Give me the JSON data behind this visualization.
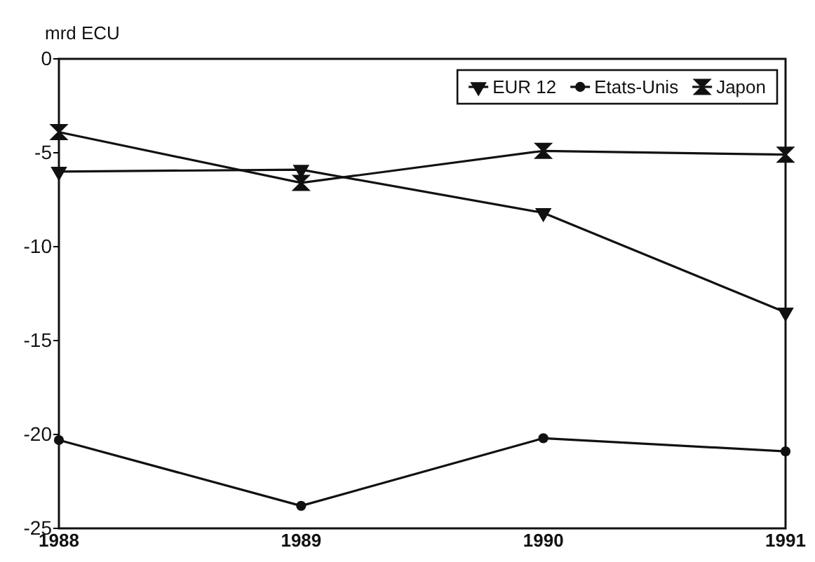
{
  "chart_data": {
    "type": "line",
    "ylabel": "mrd ECU",
    "x": [
      1988,
      1989,
      1990,
      1991
    ],
    "xlim": [
      1988,
      1991
    ],
    "xticks": [
      1988,
      1989,
      1990,
      1991
    ],
    "ylim": [
      -25,
      0
    ],
    "yticks": [
      -25,
      -20,
      -15,
      -10,
      -5,
      0
    ],
    "grid": false,
    "legend": "top right",
    "series": [
      {
        "name": "EUR 12",
        "color": "#111111",
        "marker": "triangle",
        "values": [
          -6.0,
          -5.9,
          -8.2,
          -13.5
        ]
      },
      {
        "name": "Etats-Unis",
        "color": "#111111",
        "marker": "circle",
        "values": [
          -20.3,
          -23.8,
          -20.2,
          -20.9
        ]
      },
      {
        "name": "Japon",
        "color": "#111111",
        "marker": "cross",
        "values": [
          -3.9,
          -6.6,
          -4.9,
          -5.1
        ]
      }
    ]
  }
}
